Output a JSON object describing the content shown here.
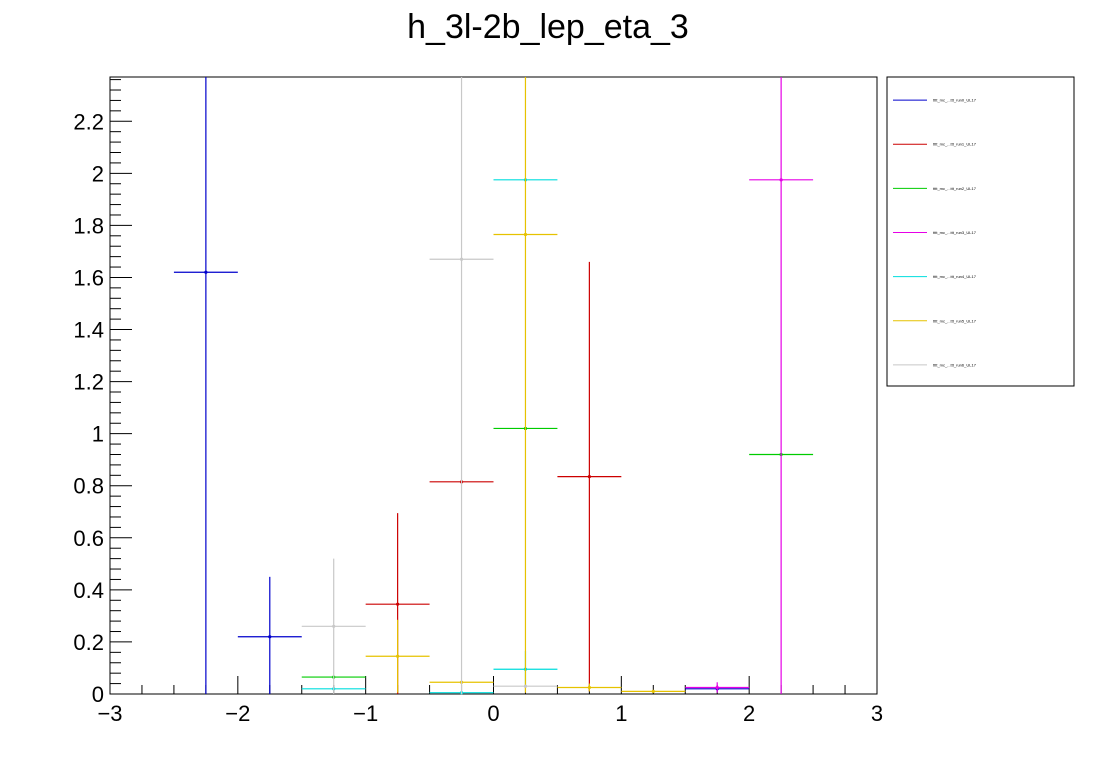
{
  "chart_data": {
    "type": "scatter",
    "title": "h_3l-2b_lep_eta_3",
    "xlabel": "",
    "ylabel": "",
    "xlim": [
      -3,
      3
    ],
    "ylim": [
      0,
      2.37
    ],
    "x_ticks": [
      -3,
      -2,
      -1,
      0,
      1,
      2,
      3
    ],
    "x_tick_labels": [
      "−3",
      "−2",
      "−1",
      "0",
      "1",
      "2",
      "3"
    ],
    "y_ticks": [
      0,
      0.2,
      0.4,
      0.6,
      0.8,
      1,
      1.2,
      1.4,
      1.6,
      1.8,
      2,
      2.2
    ],
    "y_tick_labels": [
      "0",
      "0.2",
      "0.4",
      "0.6",
      "0.8",
      "1",
      "1.2",
      "1.4",
      "1.6",
      "1.8",
      "2",
      "2.2"
    ],
    "bin_width": 0.5,
    "legend_position": "top-right",
    "grid": false,
    "series": [
      {
        "name": "tttt_mc_...ttt_run0_UL17",
        "color": "#0000cc",
        "points": [
          {
            "x": -2.25,
            "y": 1.62,
            "err": 3.0
          },
          {
            "x": -1.75,
            "y": 0.22,
            "err": 0.23
          },
          {
            "x": 1.75,
            "y": 0.02,
            "err": 0.01
          }
        ]
      },
      {
        "name": "tttt_mc_...ttt_run1_UL17",
        "color": "#cc0000",
        "points": [
          {
            "x": -0.75,
            "y": 0.345,
            "err": 0.35
          },
          {
            "x": -0.25,
            "y": 0.815,
            "err": 0.0
          },
          {
            "x": 0.75,
            "y": 0.835,
            "err": 0.825
          }
        ]
      },
      {
        "name": "tttt_mc_...ttt_run2_UL17",
        "color": "#00cc00",
        "points": [
          {
            "x": -1.25,
            "y": 0.065,
            "err": 0.0
          },
          {
            "x": 0.25,
            "y": 1.02,
            "err": 0.0
          },
          {
            "x": 2.25,
            "y": 0.92,
            "err": 0.0
          }
        ]
      },
      {
        "name": "tttt_mc_...ttt_run3_UL17",
        "color": "#e600e6",
        "points": [
          {
            "x": 1.75,
            "y": 0.025,
            "err": 0.02
          },
          {
            "x": 2.25,
            "y": 1.975,
            "err": 1.98
          }
        ]
      },
      {
        "name": "tttt_mc_...ttt_run4_UL17",
        "color": "#00dddd",
        "points": [
          {
            "x": -1.25,
            "y": 0.02,
            "err": 0.0
          },
          {
            "x": -0.25,
            "y": 0.005,
            "err": 0.0
          },
          {
            "x": 0.25,
            "y": 1.975,
            "err": 0.0
          },
          {
            "x": 0.25,
            "y": 0.095,
            "err": 0.07
          }
        ]
      },
      {
        "name": "tttt_mc_...ttt_run5_UL17",
        "color": "#e6c200",
        "points": [
          {
            "x": -0.75,
            "y": 0.145,
            "err": 0.14
          },
          {
            "x": -0.25,
            "y": 0.045,
            "err": 0.0
          },
          {
            "x": 0.25,
            "y": 1.765,
            "err": 1.76
          },
          {
            "x": 0.75,
            "y": 0.025,
            "err": 0.015
          },
          {
            "x": 1.25,
            "y": 0.01,
            "err": 0.0
          }
        ]
      },
      {
        "name": "tttt_mc_...ttt_run6_UL17",
        "color": "#c8c8c8",
        "points": [
          {
            "x": -1.25,
            "y": 0.26,
            "err": 0.26
          },
          {
            "x": -0.25,
            "y": 1.67,
            "err": 1.67
          },
          {
            "x": 0.25,
            "y": 0.03,
            "err": 0.0
          }
        ]
      }
    ]
  }
}
